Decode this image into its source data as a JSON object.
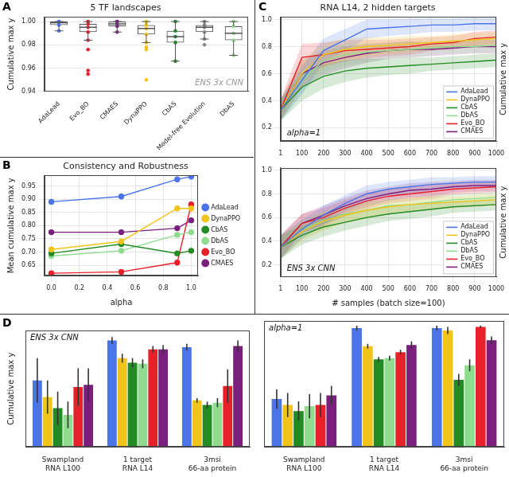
{
  "chart_data": [
    {
      "panel": "A",
      "type": "box",
      "title": "5 TF landscapes",
      "annotation": "ENS 3x CNN",
      "ylabel": "Cumulative max y",
      "ylim": [
        0.94,
        1.004
      ],
      "yticks": [
        0.94,
        0.96,
        0.98,
        {
          "value": 1,
          "label": "1.00"
        }
      ],
      "grid": true,
      "boxes": [
        {
          "name": "AdaLead",
          "color": "#4a74e8",
          "whisker_low": 0.992,
          "q1": 0.997,
          "median": 0.999,
          "q3": 1.0,
          "whisker_high": 1.0,
          "outliers": []
        },
        {
          "name": "Evo_BO",
          "color": "#e8202a",
          "whisker_low": 0.984,
          "q1": 0.991,
          "median": 0.995,
          "q3": 0.998,
          "whisker_high": 1.0,
          "outliers": [
            0.976,
            0.958,
            0.955
          ]
        },
        {
          "name": "CMAES",
          "color": "#7b1f7f",
          "whisker_low": 0.991,
          "q1": 0.996,
          "median": 0.998,
          "q3": 1.0,
          "whisker_high": 1.0,
          "outliers": []
        },
        {
          "name": "DynaPPO",
          "color": "#f0c419",
          "whisker_low": 0.982,
          "q1": 0.989,
          "median": 0.994,
          "q3": 0.997,
          "whisker_high": 1.0,
          "outliers": [
            0.978,
            0.976,
            0.95
          ]
        },
        {
          "name": "CbAS",
          "color": "#238b23",
          "whisker_low": 0.966,
          "q1": 0.982,
          "median": 0.987,
          "q3": 0.992,
          "whisker_high": 1.0,
          "outliers": []
        },
        {
          "name": "Model-free Evolution",
          "color": "#888888",
          "whisker_low": 0.985,
          "q1": 0.991,
          "median": 0.995,
          "q3": 0.997,
          "whisker_high": 1.0,
          "outliers": [
            0.98
          ]
        },
        {
          "name": "DbAS",
          "color": "#8fdc8f",
          "whisker_low": 0.971,
          "q1": 0.984,
          "median": 0.99,
          "q3": 0.996,
          "whisker_high": 1.0,
          "outliers": []
        }
      ]
    },
    {
      "panel": "B",
      "type": "line",
      "title": "Consistency and Robustness",
      "xlabel": "alpha",
      "ylabel": "Mean cumulative max y",
      "x": [
        0,
        0.5,
        0.9,
        1
      ],
      "xlim": [
        -0.05,
        1.05
      ],
      "xticks": [
        {
          "value": 0,
          "label": "0.0"
        },
        0.2,
        0.4,
        0.6,
        0.8,
        {
          "value": 1,
          "label": "1.0"
        }
      ],
      "ylim": [
        0.61,
        0.99
      ],
      "yticks": [
        0.65,
        {
          "value": 0.7,
          "label": "0.70"
        },
        0.75,
        {
          "value": 0.8,
          "label": "0.80"
        },
        0.85,
        {
          "value": 0.9,
          "label": "0.90"
        },
        0.95
      ],
      "grid": true,
      "legend": "right",
      "marker": "circle",
      "series": [
        {
          "name": "AdaLead",
          "color": "#4a74e8",
          "values": [
            0.89,
            0.91,
            0.975,
            0.985
          ]
        },
        {
          "name": "DynaPPO",
          "color": "#f0c419",
          "values": [
            0.71,
            0.74,
            0.865,
            0.865
          ]
        },
        {
          "name": "CbAS",
          "color": "#238b23",
          "values": [
            0.695,
            0.73,
            0.695,
            0.705
          ]
        },
        {
          "name": "DbAS",
          "color": "#8fdc8f",
          "values": [
            0.685,
            0.705,
            0.765,
            0.775
          ]
        },
        {
          "name": "Evo_BO",
          "color": "#e8202a",
          "values": [
            0.62,
            0.625,
            0.66,
            0.88
          ]
        },
        {
          "name": "CMAES",
          "color": "#7b1f7f",
          "values": [
            0.775,
            0.775,
            0.79,
            0.82
          ]
        }
      ]
    },
    {
      "panel": "C",
      "type": "line",
      "title": "RNA L14, 2 hidden targets",
      "annotation": "alpha=1",
      "ylabel": "Cumulative max y",
      "x": [
        1,
        100,
        200,
        300,
        400,
        500,
        600,
        700,
        800,
        900,
        1000
      ],
      "xlim": [
        1,
        1000
      ],
      "xticks": [
        1,
        100,
        200,
        300,
        400,
        500,
        600,
        700,
        800,
        900,
        1000
      ],
      "ylim": [
        0.1,
        1.02
      ],
      "yticks": [
        0.2,
        0.4,
        0.6,
        0.8,
        {
          "value": 1,
          "label": "1.0"
        }
      ],
      "grid": true,
      "legend": "lower right",
      "series": [
        {
          "name": "AdaLead",
          "color": "#4a74e8",
          "values": [
            0.33,
            0.55,
            0.77,
            0.85,
            0.93,
            0.94,
            0.95,
            0.96,
            0.96,
            0.97,
            0.97
          ],
          "spread": [
            0.08,
            0.1,
            0.09,
            0.08,
            0.07,
            0.06,
            0.06,
            0.05,
            0.05,
            0.05,
            0.05
          ]
        },
        {
          "name": "DynaPPO",
          "color": "#f0c419",
          "values": [
            0.33,
            0.6,
            0.74,
            0.78,
            0.8,
            0.81,
            0.82,
            0.83,
            0.84,
            0.85,
            0.86
          ],
          "spread": [
            0.08,
            0.1,
            0.09,
            0.08,
            0.07,
            0.06,
            0.06,
            0.05,
            0.05,
            0.05,
            0.05
          ]
        },
        {
          "name": "CbAS",
          "color": "#238b23",
          "values": [
            0.33,
            0.5,
            0.58,
            0.62,
            0.64,
            0.65,
            0.66,
            0.67,
            0.68,
            0.69,
            0.7
          ],
          "spread": [
            0.08,
            0.1,
            0.09,
            0.08,
            0.07,
            0.06,
            0.06,
            0.05,
            0.05,
            0.05,
            0.05
          ]
        },
        {
          "name": "DbAS",
          "color": "#8fdc8f",
          "values": [
            0.33,
            0.55,
            0.7,
            0.74,
            0.76,
            0.77,
            0.78,
            0.79,
            0.8,
            0.8,
            0.81
          ],
          "spread": [
            0.08,
            0.1,
            0.09,
            0.08,
            0.07,
            0.06,
            0.06,
            0.05,
            0.05,
            0.05,
            0.05
          ]
        },
        {
          "name": "Evo_BO",
          "color": "#e8202a",
          "values": [
            0.33,
            0.72,
            0.74,
            0.77,
            0.78,
            0.79,
            0.8,
            0.82,
            0.83,
            0.86,
            0.87
          ],
          "spread": [
            0.08,
            0.1,
            0.09,
            0.08,
            0.07,
            0.06,
            0.06,
            0.05,
            0.05,
            0.05,
            0.05
          ]
        },
        {
          "name": "CMAES",
          "color": "#7b1f7f",
          "values": [
            0.33,
            0.6,
            0.68,
            0.72,
            0.75,
            0.77,
            0.78,
            0.78,
            0.79,
            0.8,
            0.8
          ],
          "spread": [
            0.08,
            0.1,
            0.09,
            0.08,
            0.07,
            0.06,
            0.06,
            0.05,
            0.05,
            0.05,
            0.05
          ]
        }
      ]
    },
    {
      "type": "line",
      "annotation": "ENS 3x CNN",
      "ylabel": "Cumulative max y",
      "xlabel": "# samples (batch size=100)",
      "x": [
        1,
        100,
        200,
        300,
        400,
        500,
        600,
        700,
        800,
        900,
        1000
      ],
      "xlim": [
        1,
        1000
      ],
      "xticks": [
        1,
        100,
        200,
        300,
        400,
        500,
        600,
        700,
        800,
        900,
        1000
      ],
      "ylim": [
        0.1,
        1.02
      ],
      "yticks": [
        0.2,
        0.4,
        0.6,
        0.8,
        {
          "value": 1,
          "label": "1.0"
        }
      ],
      "grid": true,
      "legend": "lower right",
      "series": [
        {
          "name": "AdaLead",
          "color": "#4a74e8",
          "values": [
            0.35,
            0.5,
            0.62,
            0.72,
            0.8,
            0.84,
            0.86,
            0.88,
            0.89,
            0.9,
            0.9
          ],
          "spread": [
            0.1,
            0.08,
            0.08,
            0.07,
            0.07,
            0.06,
            0.06,
            0.06,
            0.05,
            0.05,
            0.05
          ]
        },
        {
          "name": "DynaPPO",
          "color": "#f0c419",
          "values": [
            0.35,
            0.48,
            0.57,
            0.62,
            0.66,
            0.69,
            0.71,
            0.72,
            0.73,
            0.74,
            0.75
          ],
          "spread": [
            0.1,
            0.08,
            0.08,
            0.07,
            0.07,
            0.06,
            0.06,
            0.06,
            0.05,
            0.05,
            0.05
          ]
        },
        {
          "name": "CbAS",
          "color": "#238b23",
          "values": [
            0.35,
            0.45,
            0.52,
            0.56,
            0.6,
            0.63,
            0.65,
            0.67,
            0.69,
            0.7,
            0.71
          ],
          "spread": [
            0.1,
            0.08,
            0.08,
            0.07,
            0.07,
            0.06,
            0.06,
            0.06,
            0.05,
            0.05,
            0.05
          ]
        },
        {
          "name": "DbAS",
          "color": "#8fdc8f",
          "values": [
            0.35,
            0.5,
            0.57,
            0.63,
            0.66,
            0.7,
            0.71,
            0.73,
            0.75,
            0.76,
            0.77
          ],
          "spread": [
            0.1,
            0.08,
            0.08,
            0.07,
            0.07,
            0.06,
            0.06,
            0.06,
            0.05,
            0.05,
            0.05
          ]
        },
        {
          "name": "Evo_BO",
          "color": "#e8202a",
          "values": [
            0.35,
            0.55,
            0.6,
            0.68,
            0.74,
            0.78,
            0.8,
            0.82,
            0.84,
            0.85,
            0.86
          ],
          "spread": [
            0.1,
            0.08,
            0.08,
            0.07,
            0.07,
            0.06,
            0.06,
            0.06,
            0.05,
            0.05,
            0.05
          ]
        },
        {
          "name": "CMAES",
          "color": "#7b1f7f",
          "values": [
            0.35,
            0.55,
            0.62,
            0.7,
            0.76,
            0.8,
            0.83,
            0.84,
            0.86,
            0.87,
            0.87
          ],
          "spread": [
            0.1,
            0.08,
            0.08,
            0.07,
            0.07,
            0.06,
            0.06,
            0.06,
            0.05,
            0.05,
            0.05
          ]
        }
      ]
    },
    {
      "panel": "D",
      "type": "bar",
      "annotation": "ENS 3x CNN",
      "ylabel": "Cumulative max y",
      "categories": [
        [
          "Swampland",
          "RNA L100"
        ],
        [
          "1 target",
          "RNA L14"
        ],
        [
          "3msi",
          "66-aa protein"
        ]
      ],
      "ylim": [
        0,
        1.05
      ],
      "tick_labels": "x",
      "series": [
        {
          "color": "#4a74e8",
          "values": [
            0.6,
            0.96,
            0.9
          ],
          "errors": [
            0.2,
            0.03,
            0.03
          ]
        },
        {
          "color": "#f0c419",
          "values": [
            0.45,
            0.8,
            0.42
          ],
          "errors": [
            0.15,
            0.04,
            0.02
          ]
        },
        {
          "color": "#238b23",
          "values": [
            0.35,
            0.76,
            0.38
          ],
          "errors": [
            0.15,
            0.04,
            0.03
          ]
        },
        {
          "color": "#8fdc8f",
          "values": [
            0.29,
            0.75,
            0.4
          ],
          "errors": [
            0.12,
            0.04,
            0.04
          ]
        },
        {
          "color": "#e8202a",
          "values": [
            0.54,
            0.88,
            0.55
          ],
          "errors": [
            0.17,
            0.03,
            0.15
          ]
        },
        {
          "color": "#7b1f7f",
          "values": [
            0.56,
            0.88,
            0.91
          ],
          "errors": [
            0.15,
            0.04,
            0.05
          ]
        }
      ]
    },
    {
      "type": "bar",
      "annotation": "alpha=1",
      "categories": [
        [
          "Swampland",
          "RNA L100"
        ],
        [
          "1 target",
          "RNA L14"
        ],
        [
          "3msi",
          "66-aa protein"
        ]
      ],
      "ylim": [
        0,
        1.05
      ],
      "tick_labels": "x",
      "series": [
        {
          "color": "#4a74e8",
          "values": [
            0.4,
            0.99,
            0.99
          ],
          "errors": [
            0.08,
            0.02,
            0.02
          ]
        },
        {
          "color": "#f0c419",
          "values": [
            0.35,
            0.84,
            0.97
          ],
          "errors": [
            0.1,
            0.02,
            0.03
          ]
        },
        {
          "color": "#238b23",
          "values": [
            0.3,
            0.73,
            0.56
          ],
          "errors": [
            0.08,
            0.02,
            0.05
          ]
        },
        {
          "color": "#8fdc8f",
          "values": [
            0.34,
            0.74,
            0.68
          ],
          "errors": [
            0.1,
            0.02,
            0.05
          ]
        },
        {
          "color": "#e8202a",
          "values": [
            0.35,
            0.79,
            1.0
          ],
          "errors": [
            0.1,
            0.02,
            0.01
          ]
        },
        {
          "color": "#7b1f7f",
          "values": [
            0.43,
            0.85,
            0.89
          ],
          "errors": [
            0.08,
            0.03,
            0.03
          ]
        }
      ]
    }
  ]
}
